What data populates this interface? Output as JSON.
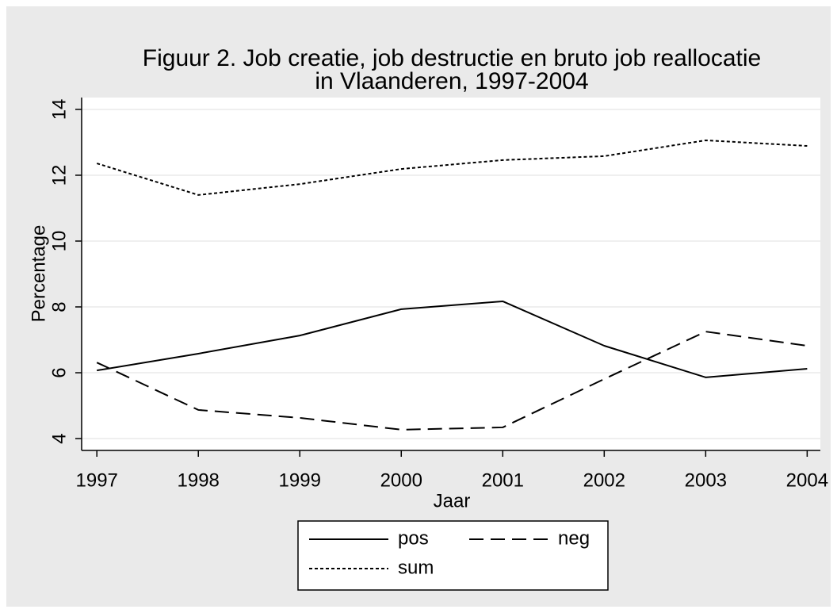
{
  "chart_data": {
    "type": "line",
    "title": [
      "Figuur 2. Job creatie, job destructie en bruto job reallocatie",
      "in Vlaanderen, 1997-2004"
    ],
    "x_label": "Jaar",
    "y_label": "Percentage",
    "x": [
      1997,
      1998,
      1999,
      2000,
      2001,
      2002,
      2003,
      2004
    ],
    "xlim": [
      1996.85,
      2004.13
    ],
    "xticks": [
      1997,
      1998,
      1999,
      2000,
      2001,
      2002,
      2003,
      2004
    ],
    "ylim": [
      3.64,
      14.36
    ],
    "yticks": [
      4,
      6,
      8,
      10,
      12,
      14
    ],
    "grid": true,
    "series": [
      {
        "name": "pos",
        "color": "#000000",
        "dash": "solid",
        "values": [
          6.07,
          6.58,
          7.13,
          7.93,
          8.17,
          6.82,
          5.86,
          6.12
        ]
      },
      {
        "name": "neg",
        "color": "#000000",
        "dash": "dash",
        "values": [
          6.31,
          4.87,
          4.63,
          4.27,
          4.34,
          5.81,
          7.25,
          6.82
        ]
      },
      {
        "name": "sum",
        "color": "#000000",
        "dash": "dot",
        "values": [
          12.36,
          11.4,
          11.73,
          12.19,
          12.46,
          12.58,
          13.06,
          12.89
        ]
      }
    ],
    "legend": "bottom"
  }
}
